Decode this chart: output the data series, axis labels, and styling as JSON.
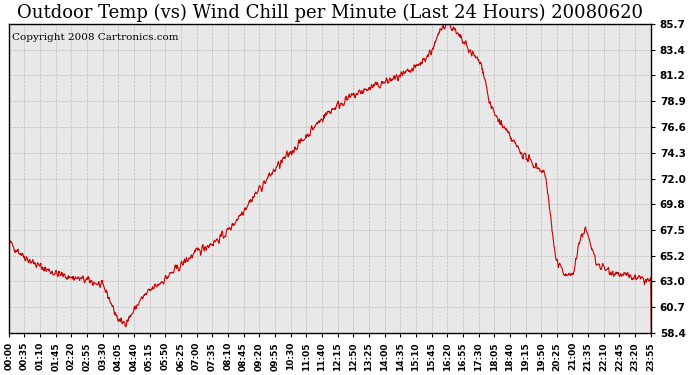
{
  "title": "Outdoor Temp (vs) Wind Chill per Minute (Last 24 Hours) 20080620",
  "copyright_text": "Copyright 2008 Cartronics.com",
  "y_ticks": [
    58.4,
    60.7,
    63.0,
    65.2,
    67.5,
    69.8,
    72.0,
    74.3,
    76.6,
    78.9,
    81.2,
    83.4,
    85.7
  ],
  "ylim": [
    58.4,
    85.7
  ],
  "line_color": "#cc0000",
  "bg_color": "#ffffff",
  "plot_bg_color": "#e8e8e8",
  "grid_color": "#aaaaaa",
  "title_fontsize": 13,
  "copyright_fontsize": 7.5,
  "x_tick_labels": [
    "00:00",
    "00:35",
    "01:10",
    "01:45",
    "02:20",
    "02:55",
    "03:30",
    "04:05",
    "04:40",
    "05:15",
    "05:50",
    "06:25",
    "07:00",
    "07:35",
    "08:10",
    "08:45",
    "09:20",
    "09:55",
    "10:30",
    "11:05",
    "11:40",
    "12:15",
    "12:50",
    "13:25",
    "14:00",
    "14:35",
    "15:10",
    "15:45",
    "16:20",
    "16:55",
    "17:30",
    "18:05",
    "18:40",
    "19:15",
    "19:50",
    "20:25",
    "21:00",
    "21:35",
    "22:10",
    "22:45",
    "23:20",
    "23:55"
  ]
}
